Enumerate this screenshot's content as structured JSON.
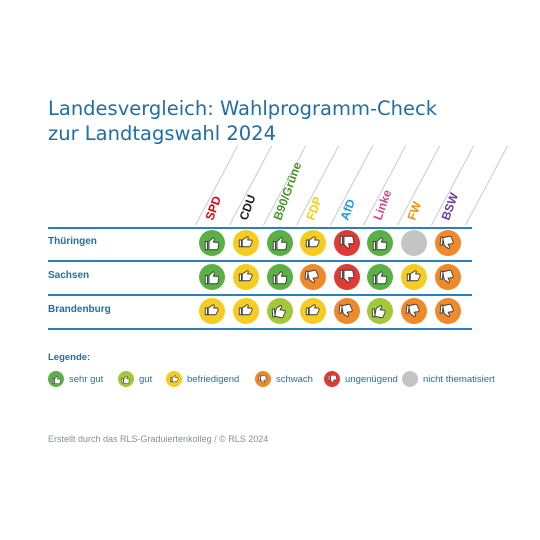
{
  "title": {
    "line1": "Landesvergleich: Wahlprogramm-Check",
    "line2": "zur Landtagswahl 2024"
  },
  "parties": [
    {
      "name": "SPD",
      "color": "#e3000f"
    },
    {
      "name": "CDU",
      "color": "#1a1a1a"
    },
    {
      "name": "B90/Grüne",
      "color": "#46962b"
    },
    {
      "name": "FDP",
      "color": "#ffcc00"
    },
    {
      "name": "AfD",
      "color": "#1a9fdb"
    },
    {
      "name": "Linke",
      "color": "#d44691"
    },
    {
      "name": "FW",
      "color": "#f29200"
    },
    {
      "name": "BSW",
      "color": "#6b3fa0"
    }
  ],
  "rows": [
    {
      "label": "Thüringen",
      "ratings": [
        "sehr gut",
        "befriedigend",
        "sehr gut",
        "befriedigend",
        "ungenügend",
        "sehr gut",
        "nicht thematisiert",
        "schwach"
      ]
    },
    {
      "label": "Sachsen",
      "ratings": [
        "sehr gut",
        "befriedigend",
        "sehr gut",
        "schwach",
        "ungenügend",
        "sehr gut",
        "befriedigend",
        "schwach"
      ]
    },
    {
      "label": "Brandenburg",
      "ratings": [
        "befriedigend",
        "befriedigend",
        "gut",
        "befriedigend",
        "schwach",
        "gut",
        "schwach",
        "schwach"
      ]
    }
  ],
  "legend": {
    "title": "Legende:",
    "items": [
      {
        "label": "sehr gut",
        "color": "#5bb045",
        "icon": "thumb-up-icon"
      },
      {
        "label": "gut",
        "color": "#a3c93a",
        "icon": "thumb-up-angled-icon"
      },
      {
        "label": "befriedigend",
        "color": "#f5cc1f",
        "icon": "thumb-sideways-icon"
      },
      {
        "label": "schwach",
        "color": "#f0892a",
        "icon": "thumb-down-angled-icon"
      },
      {
        "label": "ungenügend",
        "color": "#e03a32",
        "icon": "thumb-down-icon"
      },
      {
        "label": "nicht thematisiert",
        "color": "#c4c4c4",
        "icon": ""
      }
    ]
  },
  "footer": "Erstellt durch das RLS-Graduiertenkolleg / © RLS 2024"
}
